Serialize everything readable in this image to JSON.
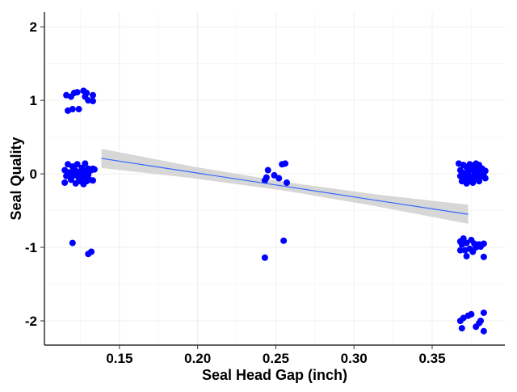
{
  "chart_data": {
    "type": "scatter",
    "xlabel": "Seal Head Gap (inch)",
    "ylabel": "Seal Quality",
    "xlim": [
      0.102,
      0.3965
    ],
    "ylim": [
      -2.33,
      2.2
    ],
    "xticks": [
      0.15,
      0.2,
      0.25,
      0.3,
      0.35
    ],
    "xtick_labels": [
      "0.15",
      "0.20",
      "0.25",
      "0.30",
      "0.35"
    ],
    "yticks": [
      2,
      1,
      0,
      -1,
      -2
    ],
    "ytick_labels": [
      "2",
      "1",
      "0",
      "-1",
      "-2"
    ],
    "grid": true,
    "point_color": "#0000FF",
    "fit_color": "#3366FF",
    "ribbon_color": "#D3D3D3",
    "fit": {
      "method": "linear",
      "x": [
        0.1385,
        0.197,
        0.256,
        0.314,
        0.373
      ],
      "y": [
        0.21,
        0.02,
        -0.17,
        -0.36,
        -0.55
      ],
      "ci_half_width": [
        0.13,
        0.08,
        0.06,
        0.08,
        0.13
      ]
    },
    "points": [
      [
        0.116,
        1.07
      ],
      [
        0.119,
        1.05
      ],
      [
        0.121,
        1.1
      ],
      [
        0.123,
        1.11
      ],
      [
        0.127,
        1.13
      ],
      [
        0.129,
        1.1
      ],
      [
        0.128,
        1.05
      ],
      [
        0.13,
        1.0
      ],
      [
        0.133,
        1.07
      ],
      [
        0.133,
        0.99
      ],
      [
        0.117,
        0.86
      ],
      [
        0.12,
        0.88
      ],
      [
        0.124,
        0.88
      ],
      [
        0.115,
        0.05
      ],
      [
        0.116,
        -0.03
      ],
      [
        0.115,
        -0.12
      ],
      [
        0.117,
        0.13
      ],
      [
        0.118,
        0.02
      ],
      [
        0.119,
        -0.08
      ],
      [
        0.12,
        0.1
      ],
      [
        0.121,
        -0.02
      ],
      [
        0.121,
        0.06
      ],
      [
        0.122,
        -0.13
      ],
      [
        0.123,
        0.01
      ],
      [
        0.123,
        0.13
      ],
      [
        0.124,
        -0.06
      ],
      [
        0.125,
        0.03
      ],
      [
        0.125,
        -0.1
      ],
      [
        0.126,
        0.08
      ],
      [
        0.126,
        -0.02
      ],
      [
        0.127,
        0.0
      ],
      [
        0.127,
        -0.14
      ],
      [
        0.128,
        0.14
      ],
      [
        0.128,
        -0.05
      ],
      [
        0.129,
        0.03
      ],
      [
        0.129,
        -0.1
      ],
      [
        0.13,
        0.07
      ],
      [
        0.13,
        -0.01
      ],
      [
        0.131,
        -0.08
      ],
      [
        0.132,
        0.05
      ],
      [
        0.133,
        0.07
      ],
      [
        0.133,
        -0.09
      ],
      [
        0.134,
        0.06
      ],
      [
        0.118,
        -0.01
      ],
      [
        0.122,
        0.04
      ],
      [
        0.124,
        -0.01
      ],
      [
        0.12,
        -0.94
      ],
      [
        0.13,
        -1.09
      ],
      [
        0.132,
        -1.06
      ],
      [
        0.243,
        -0.09
      ],
      [
        0.245,
        0.05
      ],
      [
        0.244,
        -0.05
      ],
      [
        0.249,
        -0.02
      ],
      [
        0.252,
        -0.06
      ],
      [
        0.254,
        0.13
      ],
      [
        0.256,
        0.14
      ],
      [
        0.257,
        -0.12
      ],
      [
        0.255,
        -0.91
      ],
      [
        0.243,
        -1.14
      ],
      [
        0.367,
        0.14
      ],
      [
        0.368,
        0.05
      ],
      [
        0.368,
        -0.03
      ],
      [
        0.369,
        -0.1
      ],
      [
        0.37,
        0.12
      ],
      [
        0.37,
        0.01
      ],
      [
        0.371,
        -0.06
      ],
      [
        0.372,
        0.09
      ],
      [
        0.372,
        -0.13
      ],
      [
        0.373,
        0.03
      ],
      [
        0.373,
        -0.02
      ],
      [
        0.374,
        0.13
      ],
      [
        0.374,
        -0.08
      ],
      [
        0.375,
        0.06
      ],
      [
        0.375,
        -0.04
      ],
      [
        0.376,
        0.11
      ],
      [
        0.376,
        -0.12
      ],
      [
        0.377,
        0.02
      ],
      [
        0.377,
        -0.07
      ],
      [
        0.378,
        0.14
      ],
      [
        0.378,
        0.05
      ],
      [
        0.379,
        -0.02
      ],
      [
        0.379,
        0.09
      ],
      [
        0.38,
        0.12
      ],
      [
        0.38,
        -0.1
      ],
      [
        0.381,
        0.04
      ],
      [
        0.381,
        -0.04
      ],
      [
        0.382,
        0.07
      ],
      [
        0.383,
        0.02
      ],
      [
        0.383,
        -0.03
      ],
      [
        0.384,
        0.04
      ],
      [
        0.384,
        -0.06
      ],
      [
        0.368,
        -0.92
      ],
      [
        0.37,
        -0.88
      ],
      [
        0.372,
        -0.94
      ],
      [
        0.375,
        -0.9
      ],
      [
        0.377,
        -0.95
      ],
      [
        0.38,
        -0.96
      ],
      [
        0.383,
        -0.95
      ],
      [
        0.368,
        -1.04
      ],
      [
        0.371,
        -1.04
      ],
      [
        0.374,
        -1.02
      ],
      [
        0.378,
        -1.0
      ],
      [
        0.381,
        -0.99
      ],
      [
        0.372,
        -1.12
      ],
      [
        0.383,
        -1.13
      ],
      [
        0.369,
        -0.96
      ],
      [
        0.376,
        -1.06
      ],
      [
        0.368,
        -2.0
      ],
      [
        0.37,
        -1.96
      ],
      [
        0.373,
        -1.93
      ],
      [
        0.375,
        -1.91
      ],
      [
        0.369,
        -2.1
      ],
      [
        0.378,
        -2.08
      ],
      [
        0.38,
        -2.03
      ],
      [
        0.381,
        -2.0
      ],
      [
        0.383,
        -1.89
      ],
      [
        0.383,
        -2.14
      ]
    ]
  }
}
